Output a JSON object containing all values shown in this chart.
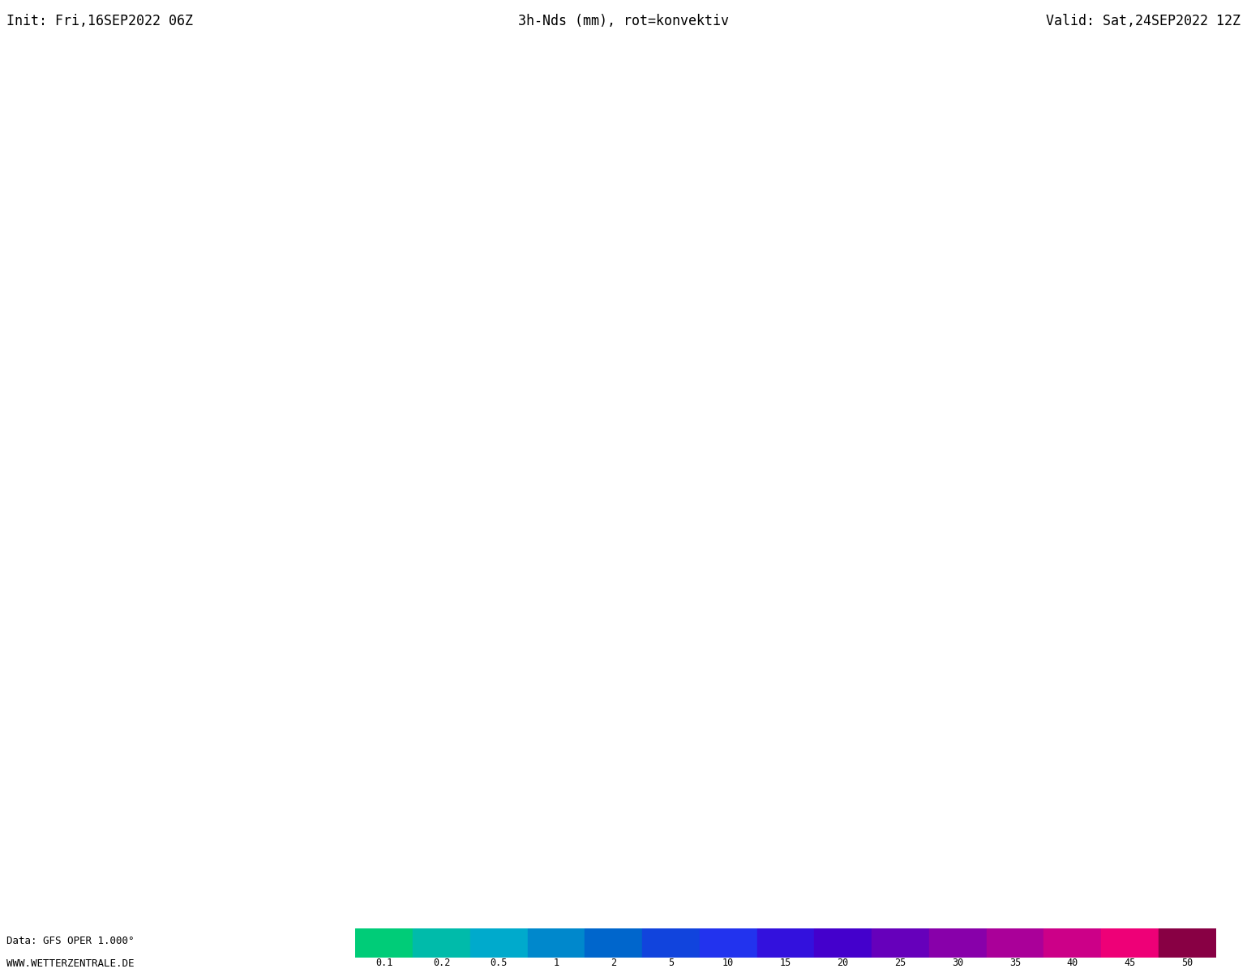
{
  "title_left": "Init: Fri,16SEP2022 06Z",
  "title_center": "3h-Nds (mm), rot=konvektiv",
  "title_right": "Valid: Sat,24SEP2022 12Z",
  "footer_left1": "Data: GFS OPER 1.000°",
  "footer_left2": "WWW.WETTERZENTRALE.DE",
  "colorbar_levels": [
    "0.1",
    "0.2",
    "0.5",
    "1",
    "2",
    "5",
    "10",
    "15",
    "20",
    "25",
    "30",
    "35",
    "40",
    "45",
    "50"
  ],
  "colorbar_colors": [
    "#00CC78",
    "#00BBAA",
    "#00AACC",
    "#0088CC",
    "#0066CC",
    "#1144DD",
    "#2233EE",
    "#3311DD",
    "#4400CC",
    "#6600BB",
    "#8800AA",
    "#AA0099",
    "#CC0088",
    "#EE0077",
    "#880044"
  ],
  "background_color": "#FFFFFF",
  "title_fontsize": 12,
  "footer_fontsize": 9,
  "colorbar_label_fontsize": 8.5,
  "map_extent": [
    -65,
    62,
    24,
    82
  ],
  "fig_width": 15.38,
  "fig_height": 12.0,
  "dpi": 100
}
